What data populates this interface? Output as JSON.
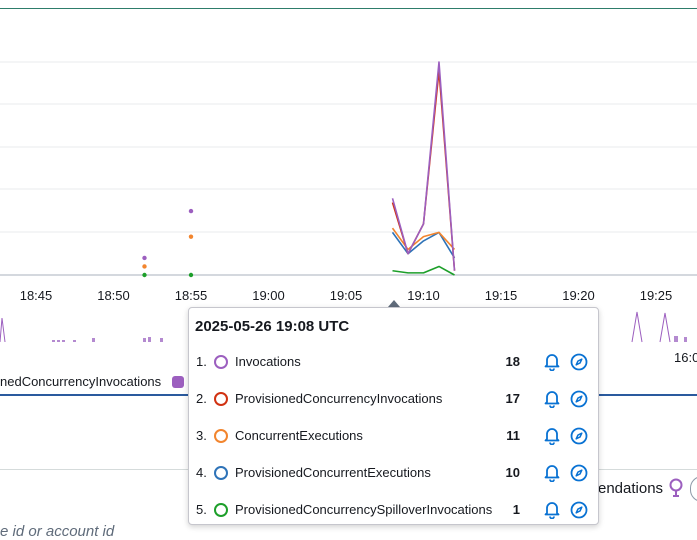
{
  "chart": {
    "x_ticks": [
      "18:45",
      "18:50",
      "18:55",
      "19:00",
      "19:05",
      "19:10",
      "19:15",
      "19:20",
      "19:25"
    ]
  },
  "chart_data": {
    "type": "line",
    "xlabel": "",
    "ylabel": "",
    "grid": true,
    "x_ticks": [
      "18:45",
      "18:50",
      "18:55",
      "19:00",
      "19:05",
      "19:10",
      "19:15",
      "19:20",
      "19:25"
    ],
    "series": [
      {
        "name": "Invocations",
        "color": "#9c5fbf",
        "x": [
          "18:52",
          "18:55",
          "19:08",
          "19:09",
          "19:10",
          "19:11",
          "19:12"
        ],
        "values": [
          4,
          15,
          18,
          5,
          12,
          50,
          1
        ]
      },
      {
        "name": "ProvisionedConcurrencyInvocations",
        "color": "#d13212",
        "x": [
          "19:08",
          "19:09",
          "19:10",
          "19:11",
          "19:12"
        ],
        "values": [
          17,
          5,
          12,
          48,
          1
        ]
      },
      {
        "name": "ConcurrentExecutions",
        "color": "#f2852e",
        "x": [
          "18:52",
          "18:55",
          "19:08",
          "19:09",
          "19:10",
          "19:11",
          "19:12"
        ],
        "values": [
          2,
          9,
          11,
          6,
          9,
          10,
          6
        ]
      },
      {
        "name": "ProvisionedConcurrentExecutions",
        "color": "#2e73b8",
        "x": [
          "19:08",
          "19:09",
          "19:10",
          "19:11",
          "19:12"
        ],
        "values": [
          10,
          5,
          8,
          10,
          4
        ]
      },
      {
        "name": "ProvisionedConcurrencySpilloverInvocations",
        "color": "#1d9f2a",
        "x": [
          "18:52",
          "18:55",
          "19:08",
          "19:09",
          "19:10",
          "19:11",
          "19:12"
        ],
        "values": [
          0,
          0,
          1,
          0.5,
          0.5,
          2,
          0
        ]
      }
    ]
  },
  "tooltip": {
    "title": "2025-05-26 19:08 UTC",
    "rows": [
      {
        "index": "1.",
        "name": "Invocations",
        "value": "18",
        "color": "#9c5fbf"
      },
      {
        "index": "2.",
        "name": "ProvisionedConcurrencyInvocations",
        "value": "17",
        "color": "#d13212"
      },
      {
        "index": "3.",
        "name": "ConcurrentExecutions",
        "value": "11",
        "color": "#f2852e"
      },
      {
        "index": "4.",
        "name": "ProvisionedConcurrentExecutions",
        "value": "10",
        "color": "#2e73b8"
      },
      {
        "index": "5.",
        "name": "ProvisionedConcurrencySpilloverInvocations",
        "value": "1",
        "color": "#1d9f2a"
      }
    ],
    "icons": [
      "bell-icon",
      "compass-icon"
    ]
  },
  "legend": {
    "partial_label": "nedConcurrencyInvocations",
    "swatch_color": "#9c5fbf"
  },
  "recommendations_partial": "endations",
  "time_label_partial": "16:0",
  "search_placeholder_partial": "e id or account id"
}
